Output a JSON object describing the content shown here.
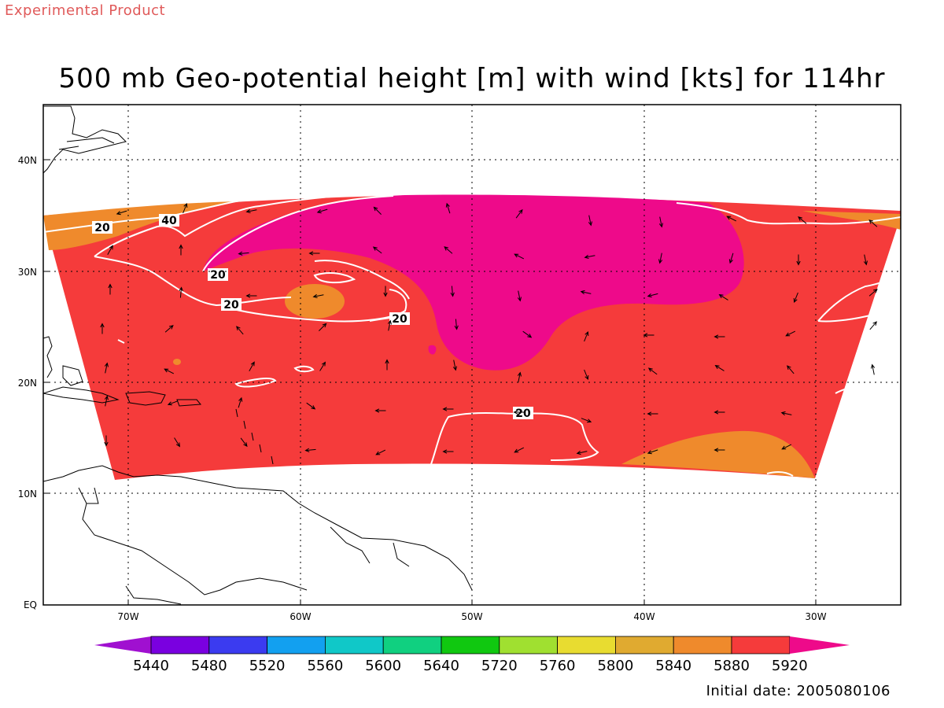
{
  "header": {
    "product_note": "Experimental Product",
    "title": "500 mb Geo-potential height [m] with wind [kts] for 114hr"
  },
  "footer": {
    "initial_date_label": "Initial date: 2005080106"
  },
  "map": {
    "lat_labels": [
      "40N",
      "30N",
      "20N",
      "10N",
      "EQ"
    ],
    "lon_labels": [
      "70W",
      "60W",
      "50W",
      "40W",
      "30W"
    ],
    "wind_contour_labels": [
      "20",
      "40",
      "20",
      "20",
      "20",
      "20"
    ],
    "fill_colors": {
      "c5880": "#ef8a2c",
      "c5920": "#f53b3b",
      "c_above": "#ee0a8a"
    }
  },
  "colorbar": {
    "levels": [
      "5440",
      "5480",
      "5520",
      "5560",
      "5600",
      "5640",
      "5720",
      "5760",
      "5800",
      "5840",
      "5880",
      "5920"
    ],
    "colors": [
      "#a010d0",
      "#7a00e0",
      "#3b3bf0",
      "#12a0f0",
      "#10c8c8",
      "#10d080",
      "#10c810",
      "#a0e030",
      "#e8dc30",
      "#e0aa30",
      "#ef8a2c",
      "#f53b3b",
      "#ee0a8a"
    ]
  }
}
